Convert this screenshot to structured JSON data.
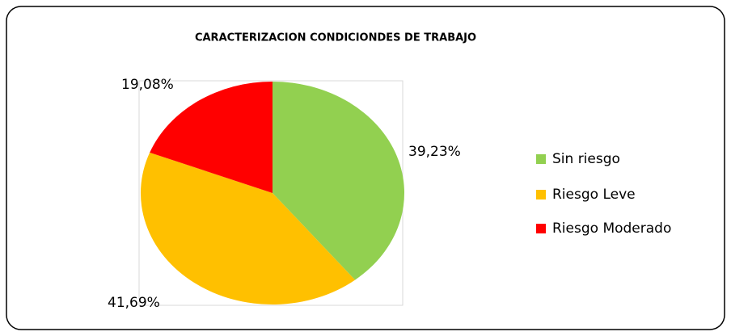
{
  "chart_data": {
    "type": "pie",
    "title": "CARACTERIZACION CONDICIONDES DE TRABAJO",
    "categories": [
      "Sin riesgo",
      "Riesgo Leve",
      "Riesgo Moderado"
    ],
    "values": [
      39.23,
      41.69,
      19.08
    ],
    "value_labels": [
      "39,23%",
      "41,69%",
      "19,08%"
    ],
    "colors": [
      "#92d050",
      "#ffc000",
      "#ff0000"
    ],
    "legend": "right"
  }
}
